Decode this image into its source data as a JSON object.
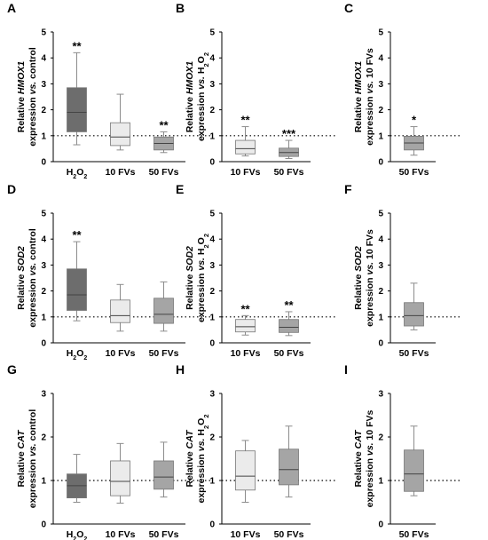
{
  "colors": {
    "H2O2": "#6d6d6d",
    "10 FVs": "#ebebeb",
    "50 FVs": "#a5a5a5",
    "axis": "#000000",
    "whisker": "#8c8c8c"
  },
  "chart_data": [
    {
      "panel": "A",
      "type": "box",
      "ylabel_lines": [
        [
          "Relative ",
          {
            "i": "HMOX1"
          }
        ],
        [
          "expression ",
          {
            "i": "vs."
          },
          " control"
        ]
      ],
      "ylim": [
        0,
        5
      ],
      "yticks": [
        0,
        1,
        2,
        3,
        4,
        5
      ],
      "reference_line": 1,
      "categories": [
        "H2O2",
        "10 FVs",
        "50 FVs"
      ],
      "boxes": [
        {
          "category": "H2O2",
          "min": 0.65,
          "q1": 1.15,
          "median": 1.9,
          "q3": 2.85,
          "max": 4.2,
          "significance": "**"
        },
        {
          "category": "10 FVs",
          "min": 0.45,
          "q1": 0.62,
          "median": 0.95,
          "q3": 1.5,
          "max": 2.6,
          "significance": ""
        },
        {
          "category": "50 FVs",
          "min": 0.35,
          "q1": 0.45,
          "median": 0.7,
          "q3": 0.95,
          "max": 1.15,
          "significance": "**"
        }
      ]
    },
    {
      "panel": "B",
      "type": "box",
      "ylabel_lines": [
        [
          "Relative ",
          {
            "i": "HMOX1"
          }
        ],
        [
          "expression ",
          {
            "i": "vs."
          },
          " H",
          {
            "sub": "2"
          },
          "O",
          {
            "sub": "2"
          }
        ]
      ],
      "ylim": [
        0,
        5
      ],
      "yticks": [
        0,
        1,
        2,
        3,
        4,
        5
      ],
      "reference_line": 1,
      "categories": [
        "10 FVs",
        "50 FVs"
      ],
      "boxes": [
        {
          "category": "10 FVs",
          "min": 0.22,
          "q1": 0.3,
          "median": 0.5,
          "q3": 0.82,
          "max": 1.35,
          "significance": "**"
        },
        {
          "category": "50 FVs",
          "min": 0.12,
          "q1": 0.2,
          "median": 0.35,
          "q3": 0.52,
          "max": 0.82,
          "significance": "***"
        }
      ]
    },
    {
      "panel": "C",
      "type": "box",
      "ylabel_lines": [
        [
          "Relative ",
          {
            "i": "HMOX1"
          }
        ],
        [
          "expression ",
          {
            "i": "vs."
          },
          " 10 FVs"
        ]
      ],
      "ylim": [
        0,
        5
      ],
      "yticks": [
        0,
        1,
        2,
        3,
        4,
        5
      ],
      "reference_line": 1,
      "categories": [
        "50 FVs"
      ],
      "boxes": [
        {
          "category": "50 FVs",
          "min": 0.25,
          "q1": 0.45,
          "median": 0.72,
          "q3": 0.98,
          "max": 1.35,
          "significance": "*"
        }
      ]
    },
    {
      "panel": "D",
      "type": "box",
      "ylabel_lines": [
        [
          "Relative ",
          {
            "i": "SOD2"
          }
        ],
        [
          "expression ",
          {
            "i": "vs."
          },
          " control"
        ]
      ],
      "ylim": [
        0,
        5
      ],
      "yticks": [
        0,
        1,
        2,
        3,
        4,
        5
      ],
      "reference_line": 1,
      "categories": [
        "H2O2",
        "10 FVs",
        "50 FVs"
      ],
      "boxes": [
        {
          "category": "H2O2",
          "min": 0.85,
          "q1": 1.25,
          "median": 1.85,
          "q3": 2.85,
          "max": 3.9,
          "significance": "**"
        },
        {
          "category": "10 FVs",
          "min": 0.45,
          "q1": 0.78,
          "median": 1.05,
          "q3": 1.65,
          "max": 2.25,
          "significance": ""
        },
        {
          "category": "50 FVs",
          "min": 0.45,
          "q1": 0.75,
          "median": 1.1,
          "q3": 1.72,
          "max": 2.35,
          "significance": ""
        }
      ]
    },
    {
      "panel": "E",
      "type": "box",
      "ylabel_lines": [
        [
          "Relative ",
          {
            "i": "SOD2"
          }
        ],
        [
          "expression ",
          {
            "i": "vs."
          },
          " H",
          {
            "sub": "2"
          },
          "O",
          {
            "sub": "2"
          }
        ]
      ],
      "ylim": [
        0,
        5
      ],
      "yticks": [
        0,
        1,
        2,
        3,
        4,
        5
      ],
      "reference_line": 1,
      "categories": [
        "10 FVs",
        "50 FVs"
      ],
      "boxes": [
        {
          "category": "10 FVs",
          "min": 0.3,
          "q1": 0.42,
          "median": 0.62,
          "q3": 0.9,
          "max": 1.05,
          "significance": "**"
        },
        {
          "category": "50 FVs",
          "min": 0.28,
          "q1": 0.4,
          "median": 0.6,
          "q3": 0.9,
          "max": 1.2,
          "significance": "**"
        }
      ]
    },
    {
      "panel": "F",
      "type": "box",
      "ylabel_lines": [
        [
          "Relative ",
          {
            "i": "SOD2"
          }
        ],
        [
          "expression ",
          {
            "i": "vs."
          },
          " 10 FVs"
        ]
      ],
      "ylim": [
        0,
        5
      ],
      "yticks": [
        0,
        1,
        2,
        3,
        4,
        5
      ],
      "reference_line": 1,
      "categories": [
        "50 FVs"
      ],
      "boxes": [
        {
          "category": "50 FVs",
          "min": 0.5,
          "q1": 0.65,
          "median": 1.05,
          "q3": 1.55,
          "max": 2.3,
          "significance": ""
        }
      ]
    },
    {
      "panel": "G",
      "type": "box",
      "ylabel_lines": [
        [
          "Relative ",
          {
            "i": "CAT"
          }
        ],
        [
          "expression ",
          {
            "i": "vs."
          },
          " control"
        ]
      ],
      "ylim": [
        0,
        3
      ],
      "yticks": [
        0,
        1,
        2,
        3
      ],
      "reference_line": 1,
      "categories": [
        "H2O2",
        "10 FVs",
        "50 FVs"
      ],
      "boxes": [
        {
          "category": "H2O2",
          "min": 0.5,
          "q1": 0.6,
          "median": 0.88,
          "q3": 1.15,
          "max": 1.6,
          "significance": ""
        },
        {
          "category": "10 FVs",
          "min": 0.48,
          "q1": 0.65,
          "median": 0.98,
          "q3": 1.45,
          "max": 1.85,
          "significance": ""
        },
        {
          "category": "50 FVs",
          "min": 0.62,
          "q1": 0.8,
          "median": 1.08,
          "q3": 1.45,
          "max": 1.88,
          "significance": ""
        }
      ]
    },
    {
      "panel": "H",
      "type": "box",
      "ylabel_lines": [
        [
          "Relative ",
          {
            "i": "CAT"
          }
        ],
        [
          "expression ",
          {
            "i": "vs."
          },
          " H",
          {
            "sub": "2"
          },
          "O",
          {
            "sub": "2"
          }
        ]
      ],
      "ylim": [
        0,
        3
      ],
      "yticks": [
        0,
        1,
        2,
        3
      ],
      "reference_line": 1,
      "categories": [
        "10 FVs",
        "50 FVs"
      ],
      "boxes": [
        {
          "category": "10 FVs",
          "min": 0.5,
          "q1": 0.78,
          "median": 1.1,
          "q3": 1.68,
          "max": 1.92,
          "significance": ""
        },
        {
          "category": "50 FVs",
          "min": 0.62,
          "q1": 0.9,
          "median": 1.25,
          "q3": 1.72,
          "max": 2.25,
          "significance": ""
        }
      ]
    },
    {
      "panel": "I",
      "type": "box",
      "ylabel_lines": [
        [
          "Relative ",
          {
            "i": "CAT"
          }
        ],
        [
          "expression ",
          {
            "i": "vs."
          },
          " 10 FVs"
        ]
      ],
      "ylim": [
        0,
        3
      ],
      "yticks": [
        0,
        1,
        2,
        3
      ],
      "reference_line": 1,
      "categories": [
        "50 FVs"
      ],
      "boxes": [
        {
          "category": "50 FVs",
          "min": 0.65,
          "q1": 0.75,
          "median": 1.15,
          "q3": 1.7,
          "max": 2.25,
          "significance": ""
        }
      ]
    }
  ]
}
